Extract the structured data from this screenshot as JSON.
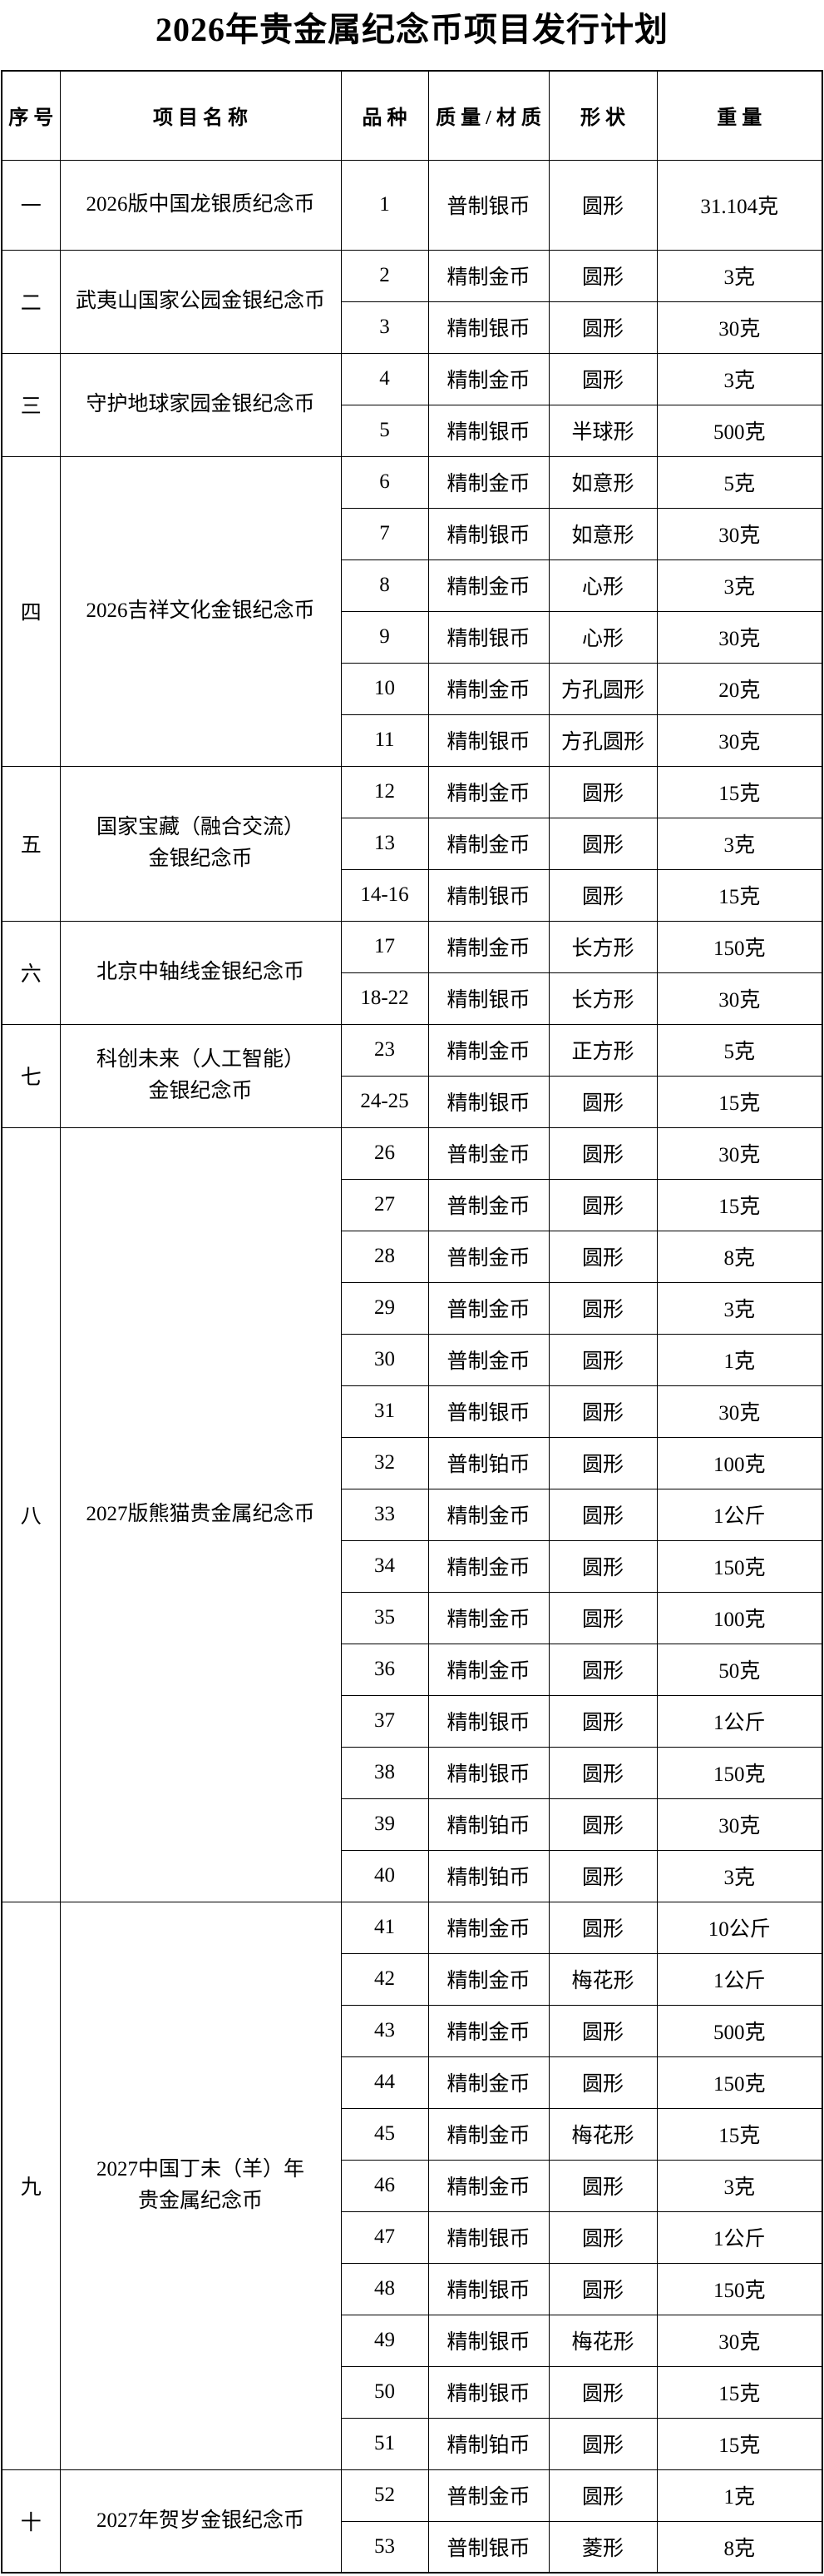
{
  "title": "2026年贵金属纪念币项目发行计划",
  "table": {
    "headers": [
      "序号",
      "项目名称",
      "品种",
      "质量/材质",
      "形状",
      "重量"
    ],
    "sections": [
      {
        "index": "一",
        "name": "2026版中国龙银质纪念币",
        "rows": [
          {
            "no": "1",
            "quality_material": "普制银币",
            "shape": "圆形",
            "weight": "31.104克"
          }
        ]
      },
      {
        "index": "二",
        "name": "武夷山国家公园金银纪念币",
        "rows": [
          {
            "no": "2",
            "quality_material": "精制金币",
            "shape": "圆形",
            "weight": "3克"
          },
          {
            "no": "3",
            "quality_material": "精制银币",
            "shape": "圆形",
            "weight": "30克"
          }
        ]
      },
      {
        "index": "三",
        "name": "守护地球家园金银纪念币",
        "rows": [
          {
            "no": "4",
            "quality_material": "精制金币",
            "shape": "圆形",
            "weight": "3克"
          },
          {
            "no": "5",
            "quality_material": "精制银币",
            "shape": "半球形",
            "weight": "500克"
          }
        ]
      },
      {
        "index": "四",
        "name": "2026吉祥文化金银纪念币",
        "rows": [
          {
            "no": "6",
            "quality_material": "精制金币",
            "shape": "如意形",
            "weight": "5克"
          },
          {
            "no": "7",
            "quality_material": "精制银币",
            "shape": "如意形",
            "weight": "30克"
          },
          {
            "no": "8",
            "quality_material": "精制金币",
            "shape": "心形",
            "weight": "3克"
          },
          {
            "no": "9",
            "quality_material": "精制银币",
            "shape": "心形",
            "weight": "30克"
          },
          {
            "no": "10",
            "quality_material": "精制金币",
            "shape": "方孔圆形",
            "weight": "20克"
          },
          {
            "no": "11",
            "quality_material": "精制银币",
            "shape": "方孔圆形",
            "weight": "30克"
          }
        ]
      },
      {
        "index": "五",
        "name": "国家宝藏（融合交流）\n金银纪念币",
        "rows": [
          {
            "no": "12",
            "quality_material": "精制金币",
            "shape": "圆形",
            "weight": "15克"
          },
          {
            "no": "13",
            "quality_material": "精制金币",
            "shape": "圆形",
            "weight": "3克"
          },
          {
            "no": "14-16",
            "quality_material": "精制银币",
            "shape": "圆形",
            "weight": "15克"
          }
        ]
      },
      {
        "index": "六",
        "name": "北京中轴线金银纪念币",
        "rows": [
          {
            "no": "17",
            "quality_material": "精制金币",
            "shape": "长方形",
            "weight": "150克"
          },
          {
            "no": "18-22",
            "quality_material": "精制银币",
            "shape": "长方形",
            "weight": "30克"
          }
        ]
      },
      {
        "index": "七",
        "name": "科创未来（人工智能）\n金银纪念币",
        "rows": [
          {
            "no": "23",
            "quality_material": "精制金币",
            "shape": "正方形",
            "weight": "5克"
          },
          {
            "no": "24-25",
            "quality_material": "精制银币",
            "shape": "圆形",
            "weight": "15克"
          }
        ]
      },
      {
        "index": "八",
        "name": "2027版熊猫贵金属纪念币",
        "rows": [
          {
            "no": "26",
            "quality_material": "普制金币",
            "shape": "圆形",
            "weight": "30克"
          },
          {
            "no": "27",
            "quality_material": "普制金币",
            "shape": "圆形",
            "weight": "15克"
          },
          {
            "no": "28",
            "quality_material": "普制金币",
            "shape": "圆形",
            "weight": "8克"
          },
          {
            "no": "29",
            "quality_material": "普制金币",
            "shape": "圆形",
            "weight": "3克"
          },
          {
            "no": "30",
            "quality_material": "普制金币",
            "shape": "圆形",
            "weight": "1克"
          },
          {
            "no": "31",
            "quality_material": "普制银币",
            "shape": "圆形",
            "weight": "30克"
          },
          {
            "no": "32",
            "quality_material": "普制铂币",
            "shape": "圆形",
            "weight": "100克"
          },
          {
            "no": "33",
            "quality_material": "精制金币",
            "shape": "圆形",
            "weight": "1公斤"
          },
          {
            "no": "34",
            "quality_material": "精制金币",
            "shape": "圆形",
            "weight": "150克"
          },
          {
            "no": "35",
            "quality_material": "精制金币",
            "shape": "圆形",
            "weight": "100克"
          },
          {
            "no": "36",
            "quality_material": "精制金币",
            "shape": "圆形",
            "weight": "50克"
          },
          {
            "no": "37",
            "quality_material": "精制银币",
            "shape": "圆形",
            "weight": "1公斤"
          },
          {
            "no": "38",
            "quality_material": "精制银币",
            "shape": "圆形",
            "weight": "150克"
          },
          {
            "no": "39",
            "quality_material": "精制铂币",
            "shape": "圆形",
            "weight": "30克"
          },
          {
            "no": "40",
            "quality_material": "精制铂币",
            "shape": "圆形",
            "weight": "3克"
          }
        ]
      },
      {
        "index": "九",
        "name": "2027中国丁未（羊）年\n贵金属纪念币",
        "rows": [
          {
            "no": "41",
            "quality_material": "精制金币",
            "shape": "圆形",
            "weight": "10公斤"
          },
          {
            "no": "42",
            "quality_material": "精制金币",
            "shape": "梅花形",
            "weight": "1公斤"
          },
          {
            "no": "43",
            "quality_material": "精制金币",
            "shape": "圆形",
            "weight": "500克"
          },
          {
            "no": "44",
            "quality_material": "精制金币",
            "shape": "圆形",
            "weight": "150克"
          },
          {
            "no": "45",
            "quality_material": "精制金币",
            "shape": "梅花形",
            "weight": "15克"
          },
          {
            "no": "46",
            "quality_material": "精制金币",
            "shape": "圆形",
            "weight": "3克"
          },
          {
            "no": "47",
            "quality_material": "精制银币",
            "shape": "圆形",
            "weight": "1公斤"
          },
          {
            "no": "48",
            "quality_material": "精制银币",
            "shape": "圆形",
            "weight": "150克"
          },
          {
            "no": "49",
            "quality_material": "精制银币",
            "shape": "梅花形",
            "weight": "30克"
          },
          {
            "no": "50",
            "quality_material": "精制银币",
            "shape": "圆形",
            "weight": "15克"
          },
          {
            "no": "51",
            "quality_material": "精制铂币",
            "shape": "圆形",
            "weight": "15克"
          }
        ]
      },
      {
        "index": "十",
        "name": "2027年贺岁金银纪念币",
        "rows": [
          {
            "no": "52",
            "quality_material": "普制金币",
            "shape": "圆形",
            "weight": "1克"
          },
          {
            "no": "53",
            "quality_material": "普制银币",
            "shape": "菱形",
            "weight": "8克"
          }
        ]
      }
    ]
  },
  "colors": {
    "background": "#ffffff",
    "text": "#000000",
    "border": "#000000"
  }
}
